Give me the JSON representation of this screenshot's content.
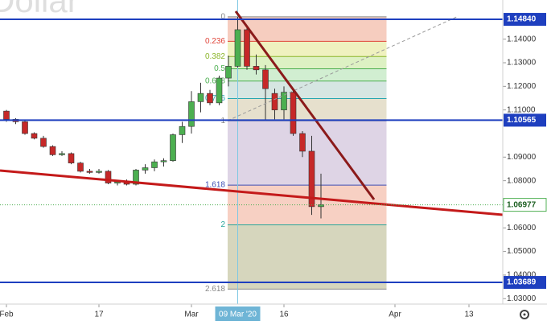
{
  "chart_data": {
    "type": "candlestick",
    "watermark": "Dollar",
    "candles": {
      "x": [
        "2020-02-03",
        "2020-02-04",
        "2020-02-05",
        "2020-02-06",
        "2020-02-07",
        "2020-02-10",
        "2020-02-11",
        "2020-02-12",
        "2020-02-13",
        "2020-02-14",
        "2020-02-17",
        "2020-02-18",
        "2020-02-19",
        "2020-02-20",
        "2020-02-21",
        "2020-02-24",
        "2020-02-25",
        "2020-02-26",
        "2020-02-27",
        "2020-02-28",
        "2020-03-02",
        "2020-03-03",
        "2020-03-04",
        "2020-03-05",
        "2020-03-06",
        "2020-03-09",
        "2020-03-10",
        "2020-03-11",
        "2020-03-12",
        "2020-03-13",
        "2020-03-16",
        "2020-03-17",
        "2020-03-18",
        "2020-03-19",
        "2020-03-20"
      ],
      "open": [
        1.1095,
        1.106,
        1.105,
        1.1,
        1.098,
        1.0945,
        1.091,
        1.0915,
        1.0875,
        1.084,
        1.0835,
        1.084,
        1.079,
        1.0795,
        1.0785,
        1.0845,
        1.0855,
        1.088,
        1.0885,
        1.0995,
        1.103,
        1.1135,
        1.117,
        1.113,
        1.1235,
        1.1285,
        1.144,
        1.1285,
        1.127,
        1.117,
        1.11,
        1.1175,
        1.1,
        1.0925,
        1.069
      ],
      "high": [
        1.11,
        1.1065,
        1.1055,
        1.1005,
        1.099,
        1.095,
        1.0925,
        1.092,
        1.088,
        1.085,
        1.085,
        1.0845,
        1.08,
        1.0805,
        1.085,
        1.087,
        1.089,
        1.0895,
        1.1,
        1.105,
        1.118,
        1.1215,
        1.1185,
        1.1245,
        1.133,
        1.1495,
        1.145,
        1.1335,
        1.129,
        1.119,
        1.12,
        1.118,
        1.101,
        1.099,
        1.083
      ],
      "low": [
        1.105,
        1.104,
        1.0995,
        1.0975,
        1.094,
        1.0905,
        1.0905,
        1.087,
        1.0835,
        1.083,
        1.083,
        1.0785,
        1.078,
        1.078,
        1.078,
        1.083,
        1.084,
        1.086,
        1.088,
        1.096,
        1.1,
        1.109,
        1.112,
        1.112,
        1.12,
        1.128,
        1.127,
        1.125,
        1.1055,
        1.106,
        1.106,
        1.099,
        1.09,
        1.0655,
        1.064
      ],
      "close": [
        1.106,
        1.105,
        1.1,
        1.098,
        1.0945,
        1.091,
        1.0915,
        1.0875,
        1.084,
        1.0835,
        1.084,
        1.079,
        1.0795,
        1.0785,
        1.0845,
        1.0855,
        1.088,
        1.0885,
        1.0995,
        1.103,
        1.1135,
        1.117,
        1.113,
        1.1235,
        1.1285,
        1.144,
        1.1285,
        1.127,
        1.119,
        1.11,
        1.1175,
        1.1,
        1.0925,
        1.069,
        1.0698
      ],
      "up_color": "#4caf50",
      "down_color": "#c62828"
    },
    "ylim": [
      1.0277,
      1.1566
    ],
    "yticks": [
      {
        "value": 1.14,
        "label": "1.14000"
      },
      {
        "value": 1.13,
        "label": "1.13000"
      },
      {
        "value": 1.12,
        "label": "1.12000"
      },
      {
        "value": 1.11,
        "label": "1.11000"
      },
      {
        "value": 1.09,
        "label": "1.09000"
      },
      {
        "value": 1.08,
        "label": "1.08000"
      },
      {
        "value": 1.06,
        "label": "1.06000"
      },
      {
        "value": 1.05,
        "label": "1.05000"
      },
      {
        "value": 1.04,
        "label": "1.04000"
      },
      {
        "value": 1.03,
        "label": "1.03000"
      }
    ],
    "xticks": [
      {
        "value": "2020-02-03",
        "label": "Feb"
      },
      {
        "value": "2020-02-17",
        "label": "17"
      },
      {
        "value": "2020-03-02",
        "label": "Mar"
      },
      {
        "value": "2020-03-16",
        "label": "16"
      },
      {
        "value": "2020-04-01",
        "label": "Apr"
      },
      {
        "value": "2020-04-13",
        "label": "13"
      }
    ],
    "hlines": {
      "values": [
        1.1484,
        1.10565,
        1.03689
      ],
      "value_labels": [
        "1.14840",
        "1.10565",
        "1.03689"
      ],
      "color": "#1e3fbf"
    },
    "last": {
      "value": 1.06977,
      "label": "1.06977",
      "color": "#4caf50"
    },
    "crosshair": {
      "x": "2020-03-09",
      "label": "09 Mar '20"
    },
    "fib": {
      "start": 1.1495,
      "end": 1.1054,
      "from": "2020-03-06",
      "to": "2020-03-31",
      "levels": [
        0,
        0.236,
        0.382,
        0.5,
        0.618,
        0.786,
        1,
        1.618,
        2,
        2.618
      ],
      "colors": [
        "#888888",
        "#e0453a",
        "#8bb52a",
        "#4caf50",
        "#4caf50",
        "#26a6b0",
        "#888888",
        "#3f51b5",
        "#26a69a",
        "#888888"
      ],
      "fills": [
        "#f4c4b4",
        "#ecefb4",
        "#d7efb9",
        "#c9ebc9",
        "#cfe2dd",
        "#e2dac4",
        "#d8cde0",
        "#f6c8b8",
        "#cfcfb1"
      ]
    }
  }
}
